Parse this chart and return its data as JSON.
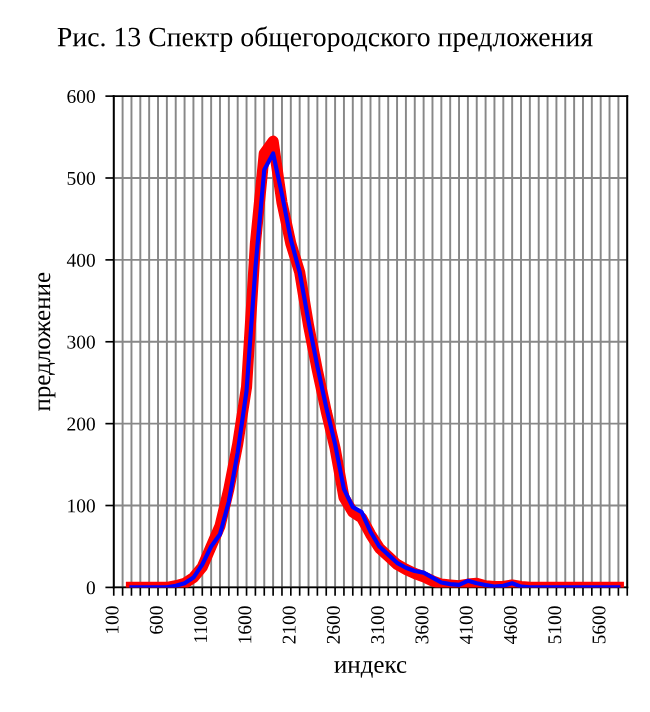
{
  "chart_data": {
    "type": "line",
    "title": "Рис. 13 Спектр общегородского предложения",
    "xlabel": "индекс",
    "ylabel": "предложение",
    "x": [
      300,
      400,
      500,
      600,
      700,
      800,
      900,
      1000,
      1100,
      1200,
      1300,
      1400,
      1500,
      1600,
      1700,
      1800,
      1900,
      2000,
      2100,
      2200,
      2300,
      2400,
      2500,
      2600,
      2700,
      2800,
      2900,
      3000,
      3100,
      3200,
      3300,
      3400,
      3500,
      3600,
      3700,
      3800,
      3900,
      4000,
      4100,
      4200,
      4300,
      4400,
      4500,
      4600,
      4700,
      4800,
      4900,
      5000,
      5100,
      5200,
      5300,
      5400,
      5500,
      5600,
      5700,
      5800
    ],
    "series": [
      {
        "color": "#0000ff",
        "values": [
          0,
          0,
          0,
          0,
          0,
          2,
          5,
          12,
          28,
          50,
          65,
          105,
          165,
          240,
          390,
          510,
          530,
          480,
          425,
          385,
          325,
          270,
          220,
          175,
          120,
          98,
          92,
          68,
          50,
          40,
          30,
          24,
          20,
          18,
          12,
          6,
          4,
          3,
          8,
          5,
          3,
          1,
          2,
          5,
          1,
          0,
          0,
          0,
          0,
          0,
          0,
          0,
          0,
          0,
          0,
          0
        ]
      },
      {
        "color": "#ff0000",
        "values": [
          0,
          0,
          0,
          0,
          0,
          2,
          5,
          12,
          25,
          50,
          75,
          120,
          175,
          245,
          420,
          530,
          545,
          470,
          420,
          385,
          320,
          265,
          215,
          170,
          110,
          92,
          85,
          65,
          48,
          38,
          28,
          22,
          17,
          13,
          8,
          4,
          3,
          2,
          4,
          5,
          2,
          1,
          1,
          3,
          1,
          0,
          0,
          0,
          0,
          0,
          0,
          0,
          0,
          0,
          0,
          0
        ]
      }
    ],
    "xlim": [
      100,
      5900
    ],
    "xticks": [
      100,
      {
        "value": 200,
        "label": null
      },
      {
        "value": 300,
        "label": null
      },
      {
        "value": 400,
        "label": null
      },
      {
        "value": 500,
        "label": null
      },
      600,
      {
        "value": 700,
        "label": null
      },
      {
        "value": 800,
        "label": null
      },
      {
        "value": 900,
        "label": null
      },
      {
        "value": 1000,
        "label": null
      },
      1100,
      {
        "value": 1200,
        "label": null
      },
      {
        "value": 1300,
        "label": null
      },
      {
        "value": 1400,
        "label": null
      },
      {
        "value": 1500,
        "label": null
      },
      1600,
      {
        "value": 1700,
        "label": null
      },
      {
        "value": 1800,
        "label": null
      },
      {
        "value": 1900,
        "label": null
      },
      {
        "value": 2000,
        "label": null
      },
      2100,
      {
        "value": 2200,
        "label": null
      },
      {
        "value": 2300,
        "label": null
      },
      {
        "value": 2400,
        "label": null
      },
      {
        "value": 2500,
        "label": null
      },
      2600,
      {
        "value": 2700,
        "label": null
      },
      {
        "value": 2800,
        "label": null
      },
      {
        "value": 2900,
        "label": null
      },
      {
        "value": 3000,
        "label": null
      },
      3100,
      {
        "value": 3200,
        "label": null
      },
      {
        "value": 3300,
        "label": null
      },
      {
        "value": 3400,
        "label": null
      },
      {
        "value": 3500,
        "label": null
      },
      3600,
      {
        "value": 3700,
        "label": null
      },
      {
        "value": 3800,
        "label": null
      },
      {
        "value": 3900,
        "label": null
      },
      {
        "value": 4000,
        "label": null
      },
      4100,
      {
        "value": 4200,
        "label": null
      },
      {
        "value": 4300,
        "label": null
      },
      {
        "value": 4400,
        "label": null
      },
      {
        "value": 4500,
        "label": null
      },
      4600,
      {
        "value": 4700,
        "label": null
      },
      {
        "value": 4800,
        "label": null
      },
      {
        "value": 4900,
        "label": null
      },
      {
        "value": 5000,
        "label": null
      },
      5100,
      {
        "value": 5200,
        "label": null
      },
      {
        "value": 5300,
        "label": null
      },
      {
        "value": 5400,
        "label": null
      },
      {
        "value": 5500,
        "label": null
      },
      5600,
      {
        "value": 5700,
        "label": null
      },
      {
        "value": 5800,
        "label": null
      },
      {
        "value": 5900,
        "label": null
      }
    ],
    "ylim": [
      0,
      600
    ],
    "yticks": [
      0,
      100,
      200,
      300,
      400,
      500,
      600
    ],
    "grid": true,
    "legend": false,
    "marker": "none",
    "line_style": "solid"
  }
}
